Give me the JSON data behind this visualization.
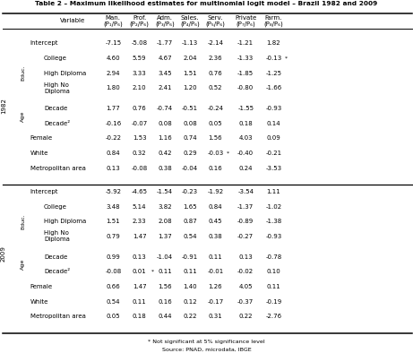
{
  "title": "Table 2 – Maximum likelihood estimates for multinomial logit model – Brazil 1982 and 2009",
  "footnote1": "* Not significant at 5% significance level",
  "footnote2": "Source: PNAD, microdata, IBGE",
  "headers": [
    "Variable",
    "Man.\n(P₁/P₆)",
    "Prof.\n(P₂/P₆)",
    "Adm.\n(P₃/P₆)",
    "Sales.\n(P₄/P₆)",
    "Serv.\n(P₅/P₆)",
    "Private\n(P₇/P₆)",
    "Farm.\n(P₈/P₆)"
  ],
  "rows_1982": [
    {
      "label": "Intercept",
      "indent": 0,
      "group": null,
      "values": [
        "-7.15",
        "-5.08",
        "-1.77",
        "-1.13",
        "-2.14",
        "-1.21",
        "1.82"
      ],
      "asterisk_col": null
    },
    {
      "label": "College",
      "indent": 1,
      "group": "Educ.",
      "values": [
        "4.60",
        "5.59",
        "4.67",
        "2.04",
        "2.36",
        "-1.33",
        "-0.13"
      ],
      "asterisk_col": 7
    },
    {
      "label": "High Diploma",
      "indent": 1,
      "group": "Educ.",
      "values": [
        "2.94",
        "3.33",
        "3.45",
        "1.51",
        "0.76",
        "-1.85",
        "-1.25"
      ],
      "asterisk_col": null
    },
    {
      "label": "High No\nDiploma",
      "indent": 1,
      "group": "Educ.",
      "values": [
        "1.80",
        "2.10",
        "2.41",
        "1.20",
        "0.52",
        "-0.80",
        "-1.66"
      ],
      "asterisk_col": null
    },
    {
      "label": "Decade",
      "indent": 1,
      "group": "Age",
      "values": [
        "1.77",
        "0.76",
        "-0.74",
        "-0.51",
        "-0.24",
        "-1.55",
        "-0.93"
      ],
      "asterisk_col": null
    },
    {
      "label": "Decade²",
      "indent": 1,
      "group": "Age",
      "values": [
        "-0.16",
        "-0.07",
        "0.08",
        "0.08",
        "0.05",
        "0.18",
        "0.14"
      ],
      "asterisk_col": null
    },
    {
      "label": "Female",
      "indent": 0,
      "group": null,
      "values": [
        "-0.22",
        "1.53",
        "1.16",
        "0.74",
        "1.56",
        "4.03",
        "0.09"
      ],
      "asterisk_col": null
    },
    {
      "label": "White",
      "indent": 0,
      "group": null,
      "values": [
        "0.84",
        "0.32",
        "0.42",
        "0.29",
        "-0.03",
        "-0.40",
        "-0.21"
      ],
      "asterisk_col": 5
    },
    {
      "label": "Metropolitan area",
      "indent": 0,
      "group": null,
      "values": [
        "0.13",
        "-0.08",
        "0.38",
        "-0.04",
        "0.16",
        "0.24",
        "-3.53"
      ],
      "asterisk_col": null
    }
  ],
  "rows_2009": [
    {
      "label": "Intercept",
      "indent": 0,
      "group": null,
      "values": [
        "-5.92",
        "-4.65",
        "-1.54",
        "-0.23",
        "-1.92",
        "-3.54",
        "1.11"
      ],
      "asterisk_col": null
    },
    {
      "label": "College",
      "indent": 1,
      "group": "Educ.",
      "values": [
        "3.48",
        "5.14",
        "3.82",
        "1.65",
        "0.84",
        "-1.37",
        "-1.02"
      ],
      "asterisk_col": null
    },
    {
      "label": "High Diploma",
      "indent": 1,
      "group": "Educ.",
      "values": [
        "1.51",
        "2.33",
        "2.08",
        "0.87",
        "0.45",
        "-0.89",
        "-1.38"
      ],
      "asterisk_col": null
    },
    {
      "label": "High No\nDiploma",
      "indent": 1,
      "group": "Educ.",
      "values": [
        "0.79",
        "1.47",
        "1.37",
        "0.54",
        "0.38",
        "-0.27",
        "-0.93"
      ],
      "asterisk_col": null
    },
    {
      "label": "Decade",
      "indent": 1,
      "group": "Age",
      "values": [
        "0.99",
        "0.13",
        "-1.04",
        "-0.91",
        "0.11",
        "0.13",
        "-0.78"
      ],
      "asterisk_col": null
    },
    {
      "label": "Decade²",
      "indent": 1,
      "group": "Age",
      "values": [
        "-0.08",
        "0.01",
        "0.11",
        "0.11",
        "-0.01",
        "-0.02",
        "0.10"
      ],
      "asterisk_col": 2
    },
    {
      "label": "Female",
      "indent": 0,
      "group": null,
      "values": [
        "0.66",
        "1.47",
        "1.56",
        "1.40",
        "1.26",
        "4.05",
        "0.11"
      ],
      "asterisk_col": null
    },
    {
      "label": "White",
      "indent": 0,
      "group": null,
      "values": [
        "0.54",
        "0.11",
        "0.16",
        "0.12",
        "-0.17",
        "-0.37",
        "-0.19"
      ],
      "asterisk_col": null
    },
    {
      "label": "Metropolitan area",
      "indent": 0,
      "group": null,
      "values": [
        "0.05",
        "0.18",
        "0.44",
        "0.22",
        "0.31",
        "0.22",
        "-2.76"
      ],
      "asterisk_col": null
    }
  ]
}
